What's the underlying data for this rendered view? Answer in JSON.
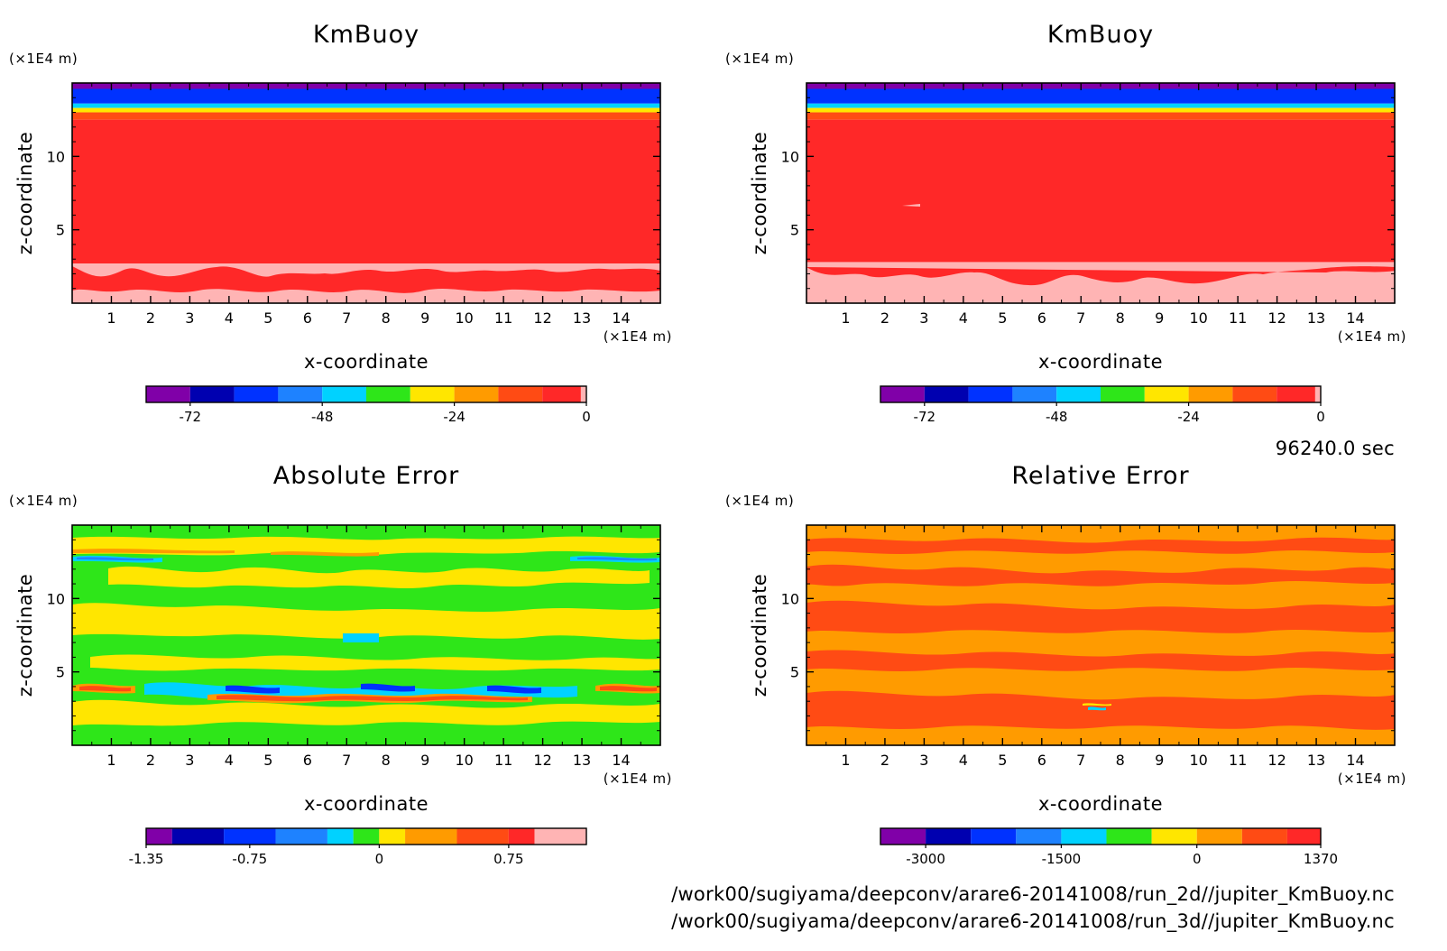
{
  "figure": {
    "time_label": "96240.0 sec",
    "file_paths": [
      "/work00/sugiyama/deepconv/arare6-20141008/run_2d//jupiter_KmBuoy.nc",
      "/work00/sugiyama/deepconv/arare6-20141008/run_3d//jupiter_KmBuoy.nc"
    ]
  },
  "chart_data": [
    {
      "type": "heatmap",
      "title": "KmBuoy",
      "xlabel": "x-coordinate",
      "ylabel": "z-coordinate",
      "x_unit": "(×1E4 m)",
      "y_unit": "(×1E4 m)",
      "xlim": [
        0,
        15
      ],
      "ylim": [
        0,
        15
      ],
      "x_ticks": [
        1,
        2,
        3,
        4,
        5,
        6,
        7,
        8,
        9,
        10,
        11,
        12,
        13,
        14
      ],
      "y_ticks": [
        5,
        10
      ],
      "levels": [
        -80,
        -72,
        -64,
        -56,
        -48,
        -40,
        -32,
        -24,
        -16,
        -8,
        -1,
        0
      ],
      "colorbar_tick_values": [
        -72,
        -48,
        -24,
        0
      ],
      "colorbar_tick_labels": [
        "-72",
        "-48",
        "-24",
        "0"
      ],
      "bands_by_height": [
        {
          "z": [
            14.6,
            15
          ],
          "value": -76
        },
        {
          "z": [
            13.6,
            14.6
          ],
          "value": -60
        },
        {
          "z": [
            13.3,
            13.6
          ],
          "value": -44
        },
        {
          "z": [
            13.0,
            13.3
          ],
          "value": -28
        },
        {
          "z": [
            12.5,
            13.0
          ],
          "value": -12
        },
        {
          "z": [
            2.7,
            12.5
          ],
          "value": -4
        },
        {
          "z": [
            0,
            2.7
          ],
          "value": -0.5
        }
      ]
    },
    {
      "type": "heatmap",
      "title": "KmBuoy",
      "xlabel": "x-coordinate",
      "ylabel": "z-coordinate",
      "x_unit": "(×1E4 m)",
      "y_unit": "(×1E4 m)",
      "xlim": [
        0,
        15
      ],
      "ylim": [
        0,
        15
      ],
      "x_ticks": [
        1,
        2,
        3,
        4,
        5,
        6,
        7,
        8,
        9,
        10,
        11,
        12,
        13,
        14
      ],
      "y_ticks": [
        5,
        10
      ],
      "levels": [
        -80,
        -72,
        -64,
        -56,
        -48,
        -40,
        -32,
        -24,
        -16,
        -8,
        -1,
        0
      ],
      "colorbar_tick_values": [
        -72,
        -48,
        -24,
        0
      ],
      "colorbar_tick_labels": [
        "-72",
        "-48",
        "-24",
        "0"
      ],
      "bands_by_height": [
        {
          "z": [
            14.6,
            15
          ],
          "value": -76
        },
        {
          "z": [
            13.6,
            14.6
          ],
          "value": -60
        },
        {
          "z": [
            13.3,
            13.6
          ],
          "value": -44
        },
        {
          "z": [
            13.0,
            13.3
          ],
          "value": -28
        },
        {
          "z": [
            12.5,
            13.0
          ],
          "value": -12
        },
        {
          "z": [
            2.8,
            12.5
          ],
          "value": -4
        },
        {
          "z": [
            0,
            2.8
          ],
          "value": -0.5
        }
      ]
    },
    {
      "type": "heatmap",
      "title": "Absolute Error",
      "xlabel": "x-coordinate",
      "ylabel": "z-coordinate",
      "x_unit": "(×1E4 m)",
      "y_unit": "(×1E4 m)",
      "xlim": [
        0,
        15
      ],
      "ylim": [
        0,
        15
      ],
      "x_ticks": [
        1,
        2,
        3,
        4,
        5,
        6,
        7,
        8,
        9,
        10,
        11,
        12,
        13,
        14
      ],
      "y_ticks": [
        5,
        10
      ],
      "levels": [
        -1.35,
        -1.2,
        -0.9,
        -0.6,
        -0.3,
        -0.15,
        0,
        0.15,
        0.45,
        0.75,
        0.9,
        1.2
      ],
      "colorbar_tick_values": [
        -1.35,
        -0.75,
        0,
        0.75
      ],
      "colorbar_tick_labels": [
        "-1.35",
        "-0.75",
        "0",
        "0.75"
      ],
      "value_range_shown": [
        -1.35,
        1.2
      ]
    },
    {
      "type": "heatmap",
      "title": "Relative Error",
      "xlabel": "x-coordinate",
      "ylabel": "z-coordinate",
      "x_unit": "(×1E4 m)",
      "y_unit": "(×1E4 m)",
      "xlim": [
        0,
        15
      ],
      "ylim": [
        0,
        15
      ],
      "x_ticks": [
        1,
        2,
        3,
        4,
        5,
        6,
        7,
        8,
        9,
        10,
        11,
        12,
        13,
        14
      ],
      "y_ticks": [
        5,
        10
      ],
      "levels": [
        -3500,
        -3000,
        -2500,
        -2000,
        -1500,
        -1000,
        -500,
        0,
        500,
        1000,
        1370
      ],
      "colorbar_tick_values": [
        -3000,
        -1500,
        0,
        1370
      ],
      "colorbar_tick_labels": [
        "-3000",
        "-1500",
        "0",
        "1370"
      ],
      "value_range_shown": [
        -3000,
        1370
      ]
    }
  ],
  "colors": {
    "scale": [
      "#8000a8",
      "#0000b0",
      "#0032ff",
      "#1e82ff",
      "#00d2ff",
      "#2ee619",
      "#ffe600",
      "#ff9b00",
      "#ff4b14",
      "#ff2828",
      "#ffb4b4"
    ]
  }
}
